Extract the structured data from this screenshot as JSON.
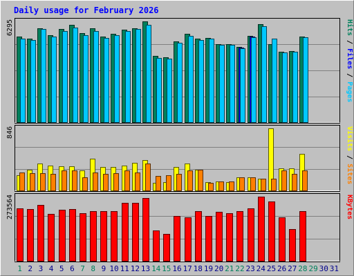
{
  "chart_data": {
    "type": "bar",
    "title": "Daily usage for February 2026",
    "categories": [
      "1",
      "2",
      "3",
      "4",
      "5",
      "6",
      "7",
      "8",
      "9",
      "10",
      "11",
      "12",
      "13",
      "14",
      "15",
      "16",
      "17",
      "18",
      "19",
      "20",
      "21",
      "22",
      "23",
      "24",
      "25",
      "26",
      "27",
      "28",
      "29",
      "30",
      "31"
    ],
    "weekend_days": [
      "1",
      "7",
      "8",
      "14",
      "15",
      "21",
      "22",
      "28",
      "29"
    ],
    "panels": [
      {
        "id": "hits",
        "ymax_label": "6295",
        "ymax": 6295,
        "legend": [
          "Pages",
          "Files",
          "Hits"
        ],
        "series": [
          {
            "name": "Hits",
            "color": "#00805c",
            "values": [
              5330,
              5210,
              5880,
              5430,
              5810,
              6095,
              5545,
              5865,
              5350,
              5500,
              5790,
              5885,
              6295,
              4125,
              4055,
              5065,
              5520,
              5200,
              5275,
              4870,
              4860,
              4700,
              5400,
              6125,
              4865,
              4395,
              4450,
              5350,
              null,
              null,
              null
            ]
          },
          {
            "name": "Files",
            "color": "#0000ff",
            "values": [
              null,
              null,
              null,
              null,
              null,
              null,
              null,
              null,
              null,
              null,
              null,
              null,
              null,
              null,
              null,
              null,
              null,
              null,
              null,
              null,
              null,
              4650,
              5340,
              null,
              null,
              null,
              null,
              null,
              null,
              null,
              null
            ]
          },
          {
            "name": "Pages",
            "color": "#00c8ff",
            "values": [
              5210,
              5110,
              5800,
              5335,
              5705,
              5920,
              5450,
              5705,
              5275,
              5420,
              5710,
              5800,
              6060,
              4020,
              3975,
              4975,
              5400,
              5120,
              5200,
              4830,
              4820,
              4605,
              5300,
              5990,
              5230,
              4340,
              4400,
              5285,
              null,
              null,
              null
            ]
          }
        ]
      },
      {
        "id": "visits",
        "ymax_label": "846",
        "ymax": 846,
        "legend": [
          "Sites",
          "Visits"
        ],
        "series": [
          {
            "name": "Visits",
            "color": "#ffff00",
            "values": [
              209,
              279,
              368,
              336,
              325,
              333,
              274,
              431,
              315,
              319,
              336,
              378,
              410,
              99,
              115,
              318,
              369,
              279,
              116,
              119,
              111,
              181,
              178,
              162,
              846,
              298,
              303,
              502,
              null,
              null,
              null
            ]
          },
          {
            "name": "Sites",
            "color": "#ff8000",
            "values": [
              240,
              235,
              235,
              225,
              270,
              275,
              180,
              245,
              227,
              235,
              275,
              245,
              369,
              195,
              205,
              225,
              275,
              280,
              105,
              125,
              120,
              175,
              175,
              164,
              164,
              275,
              230,
              275,
              null,
              null,
              null
            ]
          }
        ]
      },
      {
        "id": "kbytes",
        "ymax_label": "273564",
        "ymax": 273564,
        "legend": [
          "KBytes"
        ],
        "series": [
          {
            "name": "KBytes",
            "color": "#ff0000",
            "values": [
              224000,
              222000,
              237000,
              200000,
              218000,
              222000,
              203000,
              212000,
              211000,
              212000,
              246000,
              246000,
              267000,
              128000,
              115000,
              190000,
              184000,
              213000,
              190000,
              210000,
              204000,
              211000,
              224000,
              273564,
              254000,
              184000,
              134000,
              211000,
              null,
              null,
              null
            ]
          }
        ]
      }
    ],
    "colors": {
      "background": "#c0c0c0",
      "title": "#0000ff",
      "weekday_label": "#00008b",
      "weekend_label": "#00805c",
      "grid": "#808080"
    }
  }
}
